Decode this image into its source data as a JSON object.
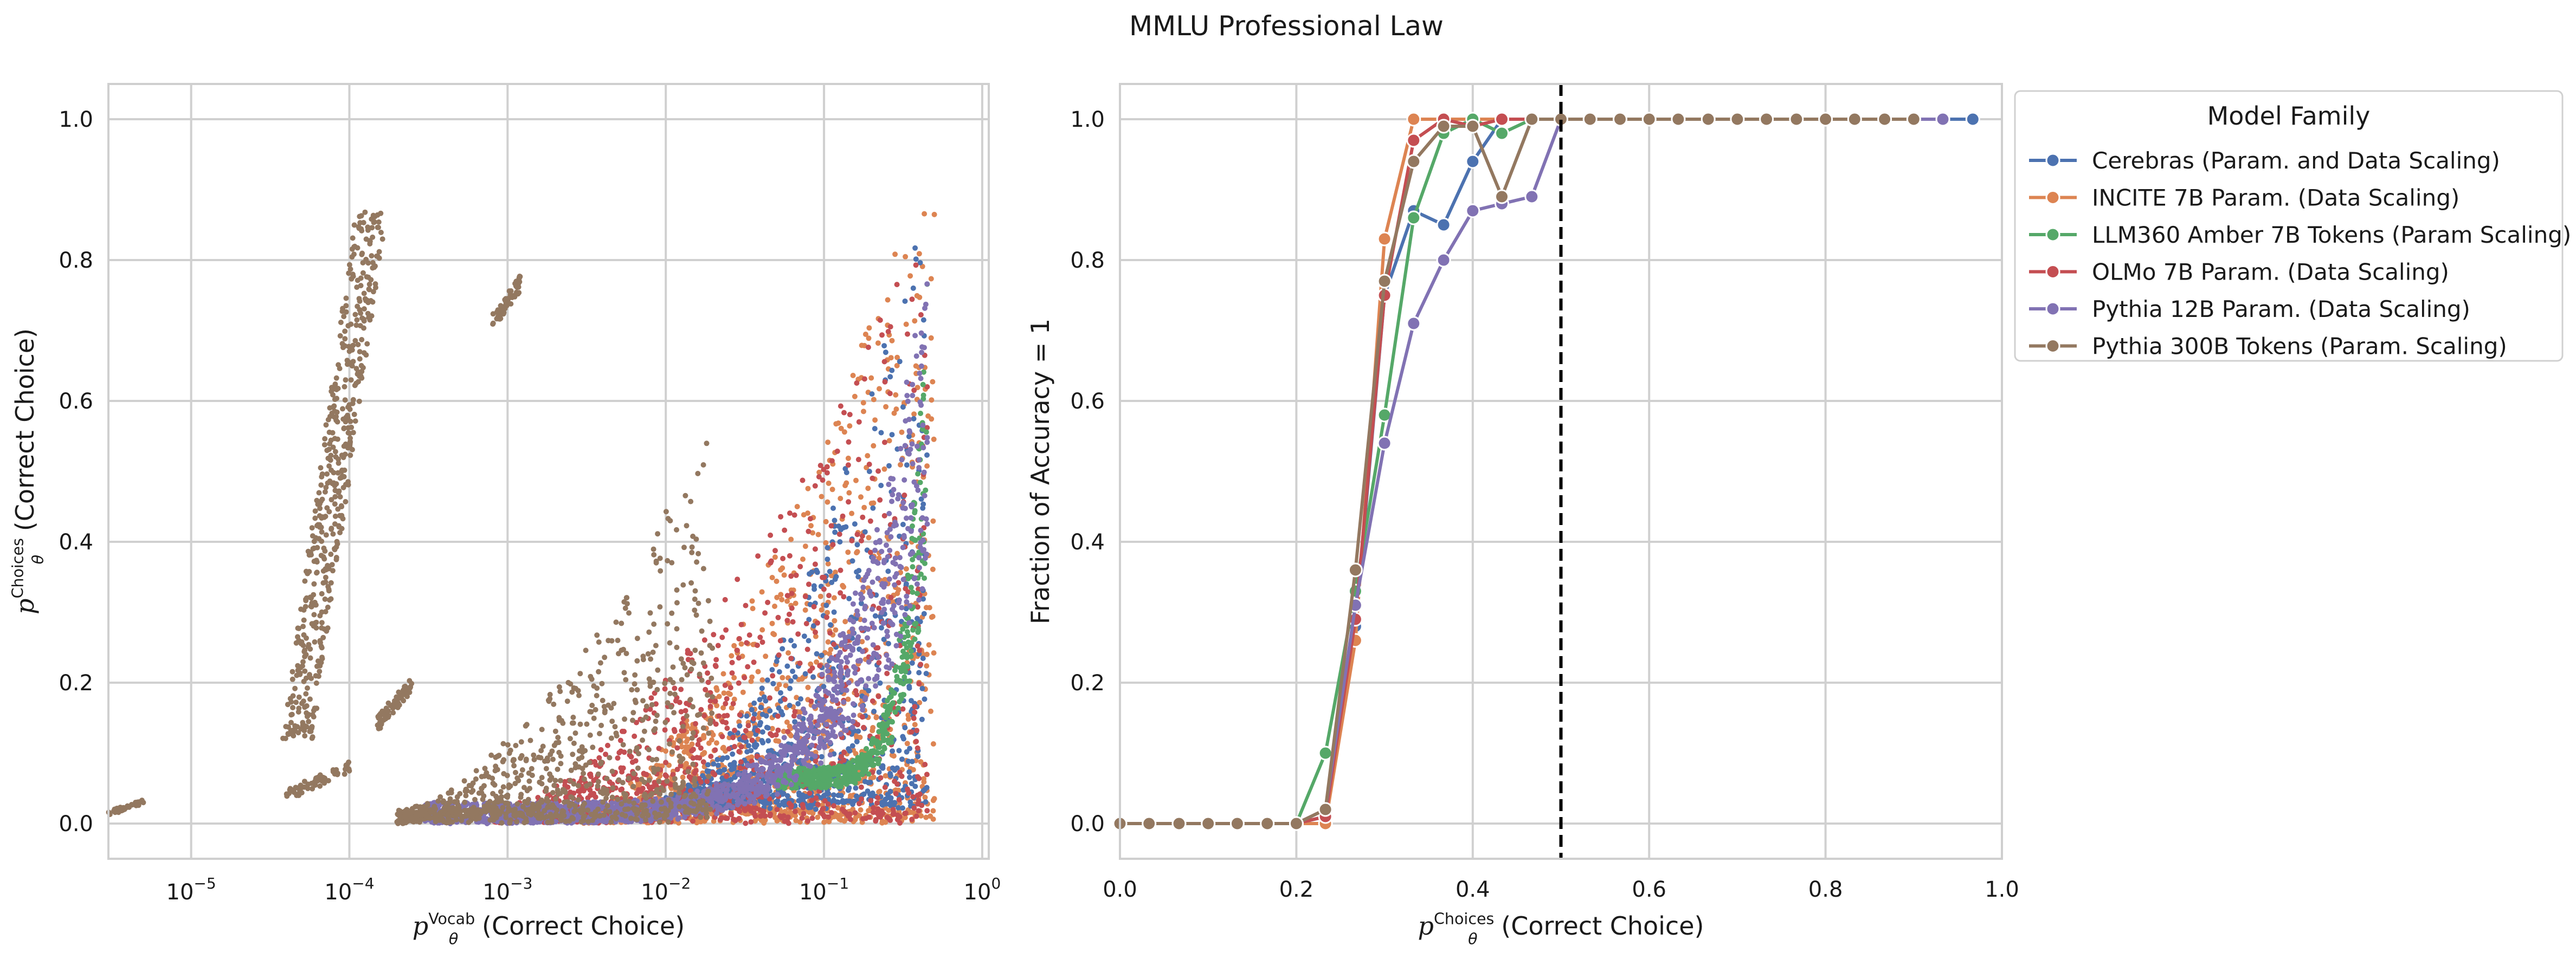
{
  "figure": {
    "title": "MMLU Professional Law"
  },
  "chart_data": [
    {
      "type": "scatter",
      "xscale": "log",
      "xlim": [
        3e-06,
        1.1
      ],
      "ylim": [
        -0.05,
        1.05
      ],
      "xticks": [
        {
          "value": 1e-05,
          "label": "10",
          "exp": "−5"
        },
        {
          "value": 0.0001,
          "label": "10",
          "exp": "−4"
        },
        {
          "value": 0.001,
          "label": "10",
          "exp": "−3"
        },
        {
          "value": 0.01,
          "label": "10",
          "exp": "−2"
        },
        {
          "value": 0.1,
          "label": "10",
          "exp": "−1"
        },
        {
          "value": 1,
          "label": "10",
          "exp": "0"
        }
      ],
      "yticks": [
        0.0,
        0.2,
        0.4,
        0.6,
        0.8,
        1.0
      ],
      "ytick_labels": [
        "0.0",
        "0.2",
        "0.4",
        "0.6",
        "0.8",
        "1.0"
      ],
      "xlabel": {
        "symbol": "p",
        "sub": "θ",
        "sup": "Vocab",
        "text": "(Correct Choice)"
      },
      "ylabel": {
        "symbol": "p",
        "sub": "θ",
        "sup": "Choices",
        "text": "(Correct Choice)"
      },
      "grid": true,
      "clusters": [
        {
          "color": "#dd8452",
          "x": [
            0.003,
            0.5
          ],
          "y": [
            0.0,
            0.98
          ],
          "n": 1400,
          "shape": "band"
        },
        {
          "color": "#4c72b0",
          "x": [
            0.01,
            0.45
          ],
          "y": [
            0.02,
            0.9
          ],
          "n": 900,
          "shape": "band"
        },
        {
          "color": "#c44e52",
          "x": [
            0.0008,
            0.45
          ],
          "y": [
            0.0,
            0.85
          ],
          "n": 1100,
          "shape": "band"
        },
        {
          "color": "#55a868",
          "x": [
            0.05,
            0.45
          ],
          "y": [
            0.05,
            0.55
          ],
          "n": 500,
          "shape": "curve"
        },
        {
          "color": "#8172b3",
          "x": [
            0.0003,
            0.45
          ],
          "y": [
            0.0,
            0.55
          ],
          "n": 1500,
          "shape": "curve"
        },
        {
          "color": "#937860",
          "x": [
            0.0002,
            0.02
          ],
          "y": [
            0.0,
            0.55
          ],
          "n": 900,
          "shape": "band"
        },
        {
          "color": "#937860",
          "x": [
            3e-05,
            0.00018
          ],
          "y": [
            0.12,
            0.87
          ],
          "n": 500,
          "shape": "arc"
        },
        {
          "color": "#937860",
          "x": [
            0.0008,
            0.0012
          ],
          "y": [
            0.7,
            0.78
          ],
          "n": 60,
          "shape": "blob"
        },
        {
          "color": "#937860",
          "x": [
            0.00015,
            0.00025
          ],
          "y": [
            0.13,
            0.21
          ],
          "n": 60,
          "shape": "blob"
        },
        {
          "color": "#937860",
          "x": [
            4e-05,
            0.0001
          ],
          "y": [
            0.03,
            0.09
          ],
          "n": 60,
          "shape": "blob"
        },
        {
          "color": "#937860",
          "x": [
            3e-06,
            5e-06
          ],
          "y": [
            0.01,
            0.035
          ],
          "n": 40,
          "shape": "blob"
        }
      ]
    },
    {
      "type": "line",
      "xlim": [
        0.0,
        1.0
      ],
      "ylim": [
        -0.05,
        1.05
      ],
      "xticks": [
        0.0,
        0.2,
        0.4,
        0.6,
        0.8,
        1.0
      ],
      "xtick_labels": [
        "0.0",
        "0.2",
        "0.4",
        "0.6",
        "0.8",
        "1.0"
      ],
      "yticks": [
        0.0,
        0.2,
        0.4,
        0.6,
        0.8,
        1.0
      ],
      "ytick_labels": [
        "0.0",
        "0.2",
        "0.4",
        "0.6",
        "0.8",
        "1.0"
      ],
      "xlabel": {
        "symbol": "p",
        "sub": "θ",
        "sup": "Choices",
        "text": "(Correct Choice)"
      },
      "ylabel": "Fraction of Accuracy = 1",
      "vline": 0.5,
      "grid": true,
      "legend": {
        "title": "Model Family",
        "placement": "outside right"
      },
      "series": [
        {
          "name": "Cerebras (Param. and Data Scaling)",
          "color": "#4c72b0",
          "x": [
            0.0,
            0.033,
            0.067,
            0.1,
            0.133,
            0.167,
            0.2,
            0.233,
            0.267,
            0.3,
            0.333,
            0.367,
            0.4,
            0.433,
            0.467,
            0.5,
            0.533,
            0.567,
            0.6,
            0.633,
            0.667,
            0.7,
            0.733,
            0.767,
            0.8,
            0.833,
            0.867,
            0.9,
            0.933,
            0.967
          ],
          "y": [
            0,
            0,
            0,
            0,
            0,
            0,
            0,
            0.01,
            0.28,
            0.75,
            0.87,
            0.85,
            0.94,
            1.0,
            1.0,
            1.0,
            1.0,
            1.0,
            1.0,
            1.0,
            1.0,
            1.0,
            1.0,
            1.0,
            1.0,
            1.0,
            1.0,
            1.0,
            1.0,
            1.0
          ]
        },
        {
          "name": "INCITE 7B Param. (Data Scaling)",
          "color": "#dd8452",
          "x": [
            0.0,
            0.033,
            0.067,
            0.1,
            0.133,
            0.167,
            0.2,
            0.233,
            0.267,
            0.3,
            0.333,
            0.367,
            0.4,
            0.433,
            0.467,
            0.5
          ],
          "y": [
            0,
            0,
            0,
            0,
            0,
            0,
            0,
            0.0,
            0.26,
            0.83,
            1.0,
            1.0,
            1.0,
            1.0,
            1.0,
            1.0
          ]
        },
        {
          "name": "LLM360 Amber 7B Tokens (Param Scaling)",
          "color": "#55a868",
          "x": [
            0.0,
            0.033,
            0.067,
            0.1,
            0.133,
            0.167,
            0.2,
            0.233,
            0.267,
            0.3,
            0.333,
            0.367,
            0.4,
            0.433,
            0.467,
            0.5
          ],
          "y": [
            0,
            0,
            0,
            0,
            0,
            0,
            0,
            0.1,
            0.33,
            0.58,
            0.86,
            0.98,
            1.0,
            0.98,
            1.0,
            1.0
          ]
        },
        {
          "name": "OLMo 7B Param. (Data Scaling)",
          "color": "#c44e52",
          "x": [
            0.0,
            0.033,
            0.067,
            0.1,
            0.133,
            0.167,
            0.2,
            0.233,
            0.267,
            0.3,
            0.333,
            0.367,
            0.4,
            0.433,
            0.467,
            0.5
          ],
          "y": [
            0,
            0,
            0,
            0,
            0,
            0,
            0,
            0.01,
            0.29,
            0.75,
            0.97,
            1.0,
            0.99,
            1.0,
            1.0,
            1.0
          ]
        },
        {
          "name": "Pythia 12B Param. (Data Scaling)",
          "color": "#8172b3",
          "x": [
            0.0,
            0.033,
            0.067,
            0.1,
            0.133,
            0.167,
            0.2,
            0.233,
            0.267,
            0.3,
            0.333,
            0.367,
            0.4,
            0.433,
            0.467,
            0.5,
            0.533,
            0.567,
            0.6,
            0.633,
            0.667,
            0.7,
            0.733,
            0.767,
            0.8,
            0.833,
            0.867,
            0.9,
            0.933
          ],
          "y": [
            0,
            0,
            0,
            0,
            0,
            0,
            0,
            0.02,
            0.31,
            0.54,
            0.71,
            0.8,
            0.87,
            0.88,
            0.89,
            1.0,
            1.0,
            1.0,
            1.0,
            1.0,
            1.0,
            1.0,
            1.0,
            1.0,
            1.0,
            1.0,
            1.0,
            1.0,
            1.0
          ]
        },
        {
          "name": "Pythia 300B Tokens (Param. Scaling)",
          "color": "#937860",
          "x": [
            0.0,
            0.033,
            0.067,
            0.1,
            0.133,
            0.167,
            0.2,
            0.233,
            0.267,
            0.3,
            0.333,
            0.367,
            0.4,
            0.433,
            0.467,
            0.5,
            0.533,
            0.567,
            0.6,
            0.633,
            0.667,
            0.7,
            0.733,
            0.767,
            0.8,
            0.833,
            0.867,
            0.9
          ],
          "y": [
            0,
            0,
            0,
            0,
            0,
            0,
            0,
            0.02,
            0.36,
            0.77,
            0.94,
            0.99,
            0.99,
            0.89,
            1.0,
            1.0,
            1.0,
            1.0,
            1.0,
            1.0,
            1.0,
            1.0,
            1.0,
            1.0,
            1.0,
            1.0,
            1.0,
            1.0
          ]
        }
      ]
    }
  ]
}
